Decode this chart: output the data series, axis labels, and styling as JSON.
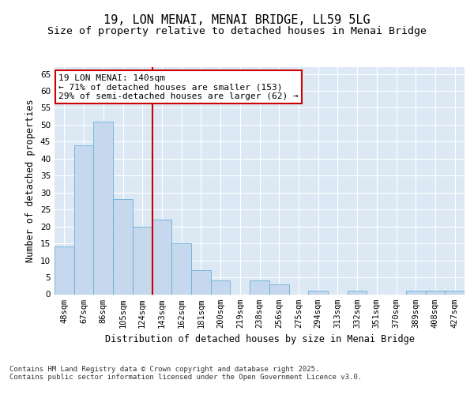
{
  "title": "19, LON MENAI, MENAI BRIDGE, LL59 5LG",
  "subtitle": "Size of property relative to detached houses in Menai Bridge",
  "xlabel": "Distribution of detached houses by size in Menai Bridge",
  "ylabel": "Number of detached properties",
  "categories": [
    "48sqm",
    "67sqm",
    "86sqm",
    "105sqm",
    "124sqm",
    "143sqm",
    "162sqm",
    "181sqm",
    "200sqm",
    "219sqm",
    "238sqm",
    "256sqm",
    "275sqm",
    "294sqm",
    "313sqm",
    "332sqm",
    "351sqm",
    "370sqm",
    "389sqm",
    "408sqm",
    "427sqm"
  ],
  "values": [
    14,
    44,
    51,
    28,
    20,
    22,
    15,
    7,
    4,
    0,
    4,
    3,
    0,
    1,
    0,
    1,
    0,
    0,
    1,
    1,
    1
  ],
  "bar_color": "#c5d8ed",
  "bar_edge_color": "#6aafd6",
  "vline_x_index": 5,
  "vline_color": "#cc0000",
  "annotation_text": "19 LON MENAI: 140sqm\n← 71% of detached houses are smaller (153)\n29% of semi-detached houses are larger (62) →",
  "annotation_box_color": "#ffffff",
  "annotation_box_edge": "#cc0000",
  "ylim": [
    0,
    67
  ],
  "yticks": [
    0,
    5,
    10,
    15,
    20,
    25,
    30,
    35,
    40,
    45,
    50,
    55,
    60,
    65
  ],
  "plot_background": "#dce9f5",
  "figure_background": "#ffffff",
  "footer_text": "Contains HM Land Registry data © Crown copyright and database right 2025.\nContains public sector information licensed under the Open Government Licence v3.0.",
  "title_fontsize": 11,
  "subtitle_fontsize": 9.5,
  "axis_label_fontsize": 8.5,
  "tick_fontsize": 7.5,
  "annotation_fontsize": 8,
  "footer_fontsize": 6.5
}
